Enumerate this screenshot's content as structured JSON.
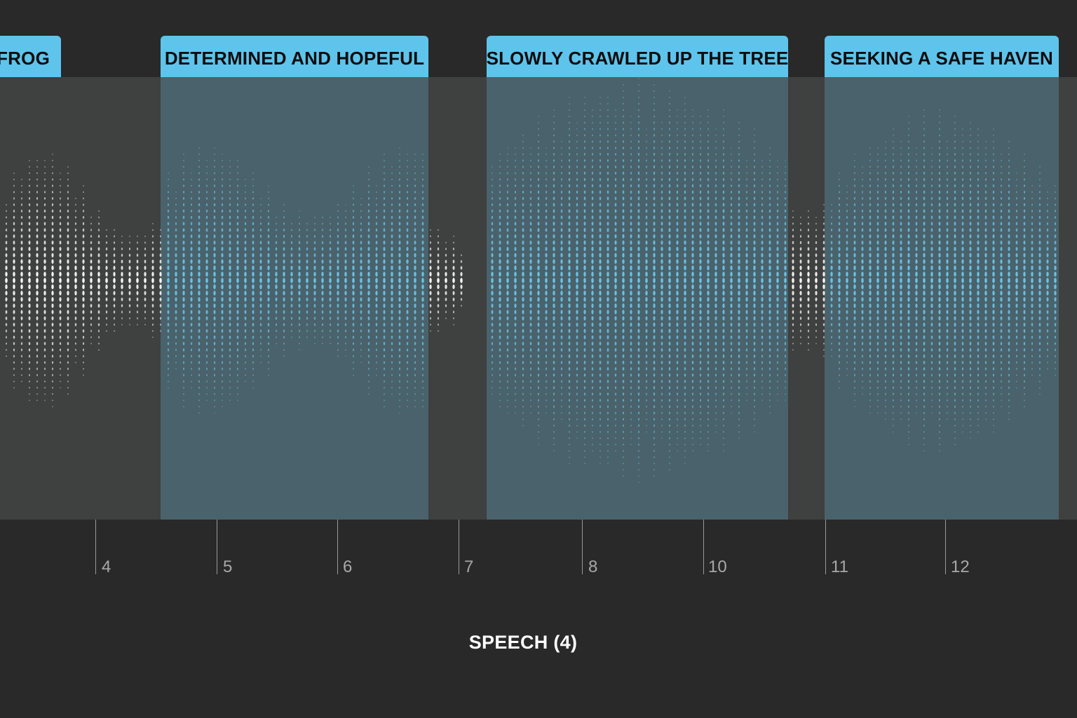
{
  "segments": [
    {
      "label": "FROG"
    },
    {
      "label": "DETERMINED AND HOPEFUL"
    },
    {
      "label": "SLOWLY CRAWLED UP THE TREE"
    },
    {
      "label": "SEEKING A SAFE HAVEN"
    }
  ],
  "ruler": {
    "ticks": [
      "4",
      "5",
      "6",
      "7",
      "8",
      "10",
      "11",
      "12"
    ]
  },
  "track_title": "SPEECH (4)",
  "colors": {
    "background": "#292929",
    "track": "#3f4040",
    "segment_fill": "#4a626b",
    "label_chip": "#5ec4ec",
    "waveform_highlight": "#6cc8ec",
    "waveform_plain": "#ffffff",
    "tick_text": "#a8a8a8"
  }
}
